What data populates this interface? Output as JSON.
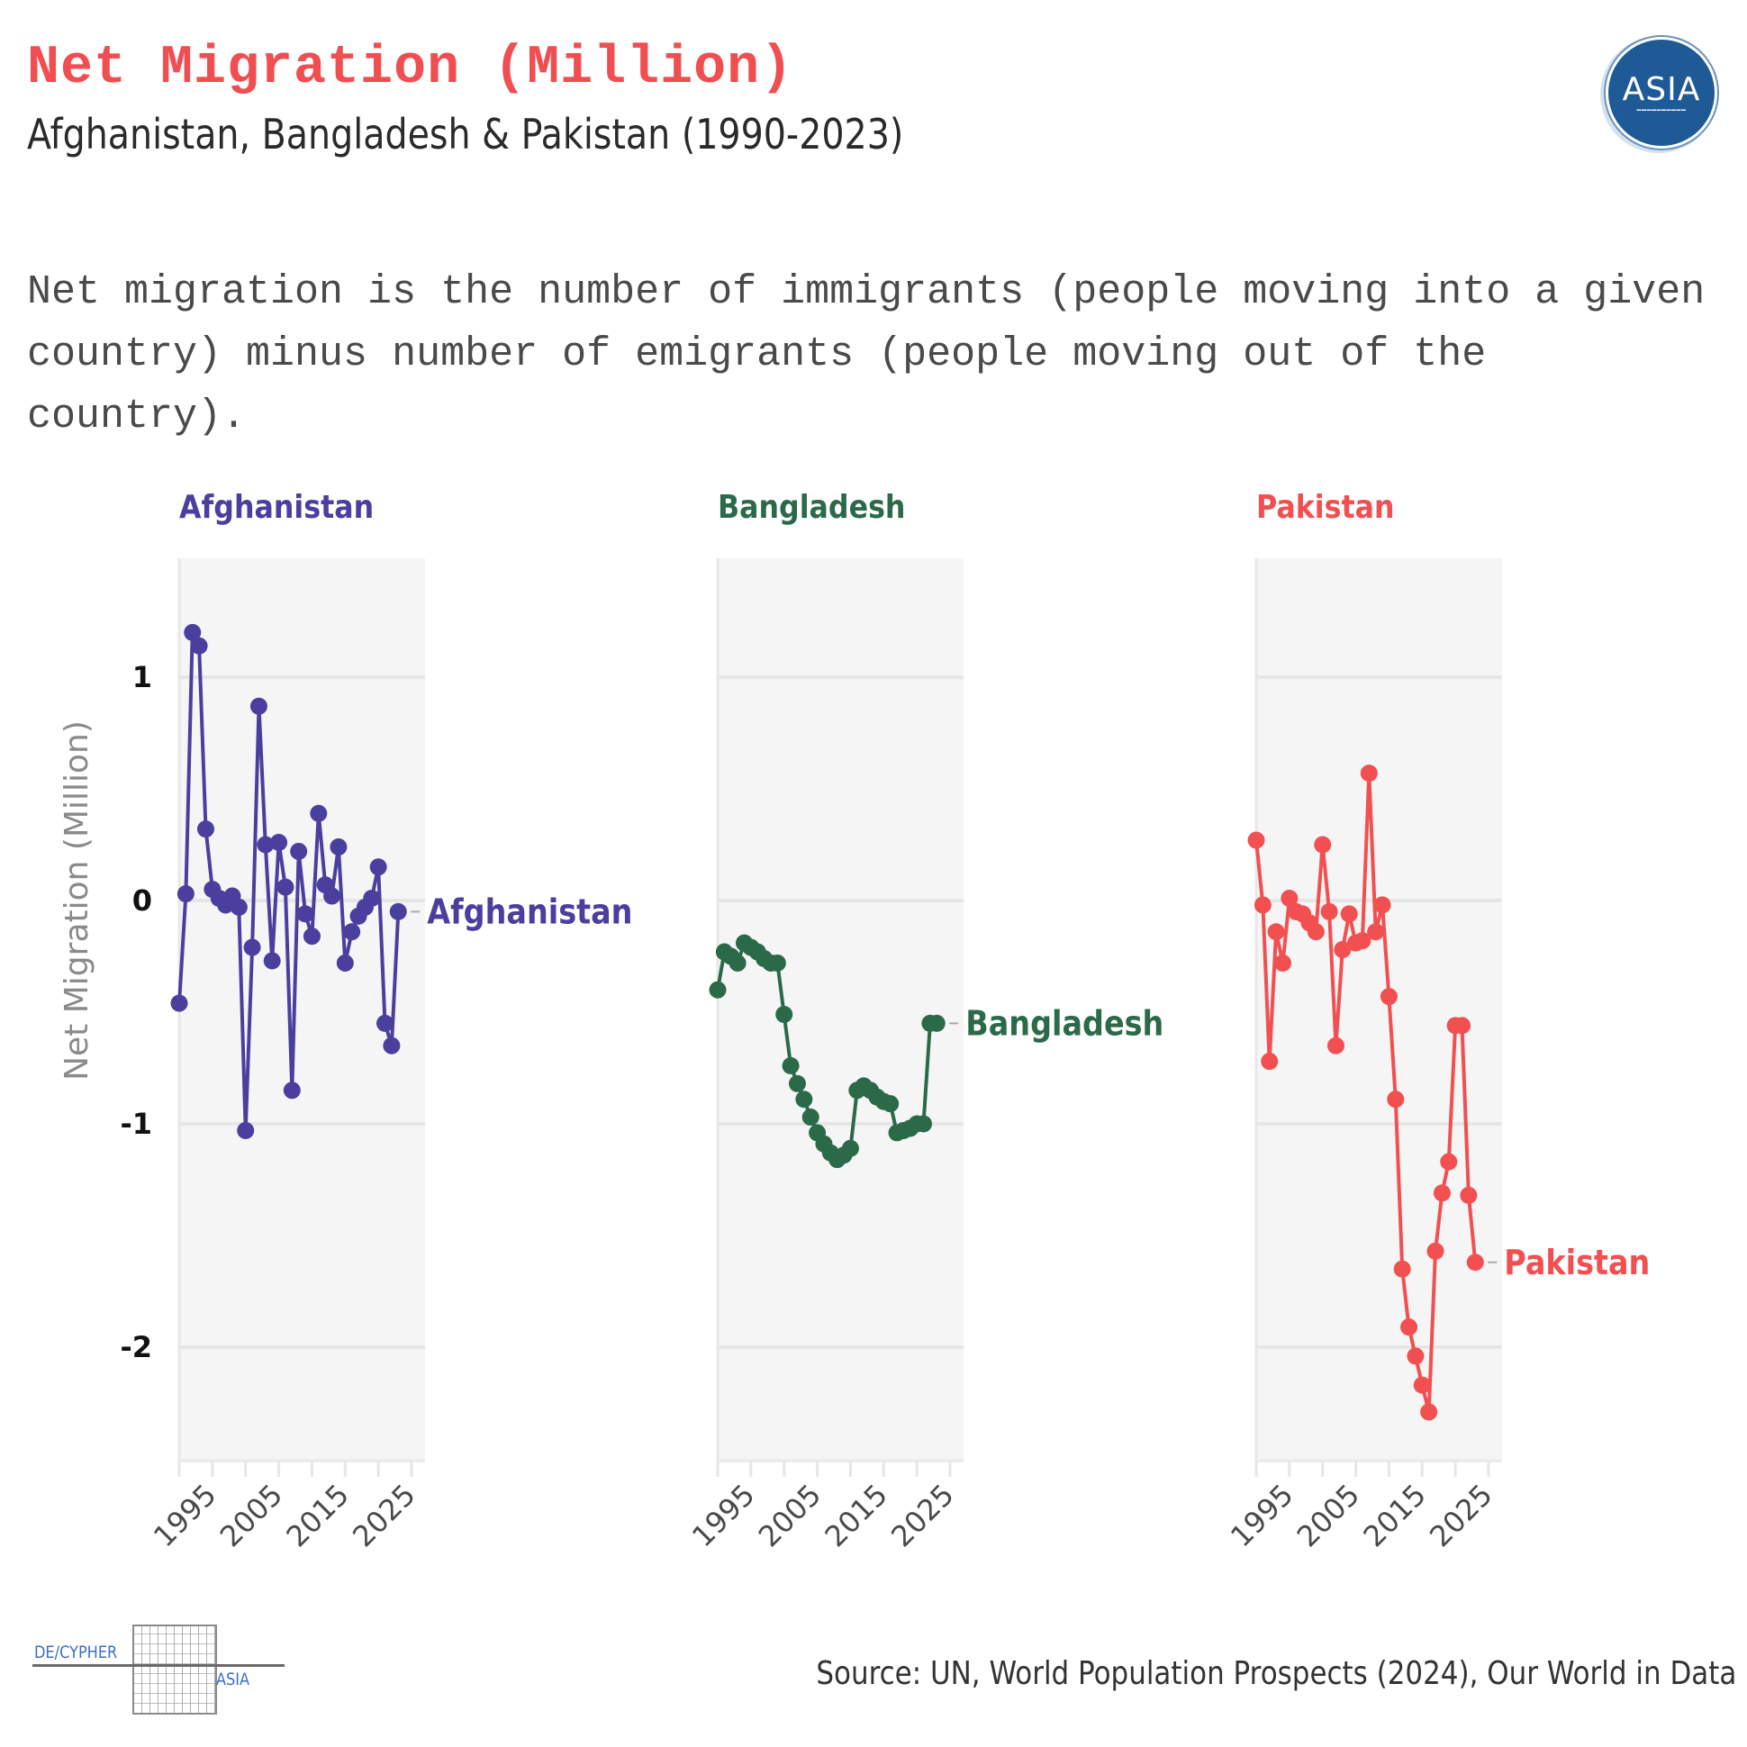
{
  "header": {
    "title": "Net Migration (Million)",
    "subtitle": "Afghanistan, Bangladesh & Pakistan (1990-2023)",
    "description": "Net migration is the number of immigrants (people moving into a given country) minus number of emigrants (people moving out of the country).",
    "logo_text": "ASIA",
    "logo_icon": "asia-circle-logo-icon"
  },
  "footer": {
    "brand_left": "DE/CYPHER",
    "brand_right": "ASIA",
    "brand_icon": "maze-logo-icon",
    "source": "Source: UN, World Population Prospects (2024), Our World in Data"
  },
  "colors": {
    "title": "#f04e50",
    "afghanistan": "#4a3f9f",
    "bangladesh": "#2b6a48",
    "pakistan": "#f24f50",
    "panel_bg": "#f5f5f5",
    "grid": "#e6e6e6"
  },
  "chart_data": {
    "type": "line",
    "title": "Net Migration (Million)",
    "subtitle": "Afghanistan, Bangladesh & Pakistan (1990-2023)",
    "xlabel": "",
    "ylabel": "Net Migration (Million)",
    "xlim": [
      1990,
      2025
    ],
    "ylim": [
      -2.5,
      1.55
    ],
    "x_ticks": [
      1995,
      2005,
      2015,
      2025
    ],
    "y_ticks": [
      1,
      0,
      -1,
      -2
    ],
    "grid": true,
    "layout": "small-multiples",
    "x": [
      1990,
      1991,
      1992,
      1993,
      1994,
      1995,
      1996,
      1997,
      1998,
      1999,
      2000,
      2001,
      2002,
      2003,
      2004,
      2005,
      2006,
      2007,
      2008,
      2009,
      2010,
      2011,
      2012,
      2013,
      2014,
      2015,
      2016,
      2017,
      2018,
      2019,
      2020,
      2021,
      2022,
      2023
    ],
    "series": [
      {
        "name": "Afghanistan",
        "end_label": "Afghanistan",
        "values": [
          -0.46,
          0.03,
          1.2,
          1.14,
          0.32,
          0.05,
          0.01,
          -0.02,
          0.02,
          -0.03,
          -1.03,
          -0.21,
          0.87,
          0.25,
          -0.27,
          0.26,
          0.06,
          -0.85,
          0.22,
          -0.06,
          -0.16,
          0.39,
          0.07,
          0.02,
          0.24,
          -0.28,
          -0.14,
          -0.07,
          -0.03,
          0.01,
          0.15,
          -0.55,
          -0.65,
          -0.05
        ]
      },
      {
        "name": "Bangladesh",
        "end_label": "Bangladesh",
        "values": [
          -0.4,
          -0.23,
          -0.25,
          -0.28,
          -0.19,
          -0.21,
          -0.23,
          -0.26,
          -0.28,
          -0.28,
          -0.51,
          -0.74,
          -0.82,
          -0.89,
          -0.97,
          -1.04,
          -1.09,
          -1.13,
          -1.16,
          -1.14,
          -1.11,
          -0.85,
          -0.83,
          -0.85,
          -0.88,
          -0.9,
          -0.91,
          -1.04,
          -1.03,
          -1.02,
          -1.0,
          -1.0,
          -0.55,
          -0.55
        ]
      },
      {
        "name": "Pakistan",
        "end_label": "Pakistan",
        "values": [
          0.27,
          -0.02,
          -0.72,
          -0.14,
          -0.28,
          0.01,
          -0.05,
          -0.06,
          -0.1,
          -0.14,
          0.25,
          -0.05,
          -0.65,
          -0.22,
          -0.06,
          -0.19,
          -0.18,
          0.57,
          -0.14,
          -0.02,
          -0.43,
          -0.89,
          -1.65,
          -1.91,
          -2.04,
          -2.17,
          -2.29,
          -1.57,
          -1.31,
          -1.17,
          -0.56,
          -0.56,
          -1.32,
          -1.62
        ]
      }
    ]
  }
}
